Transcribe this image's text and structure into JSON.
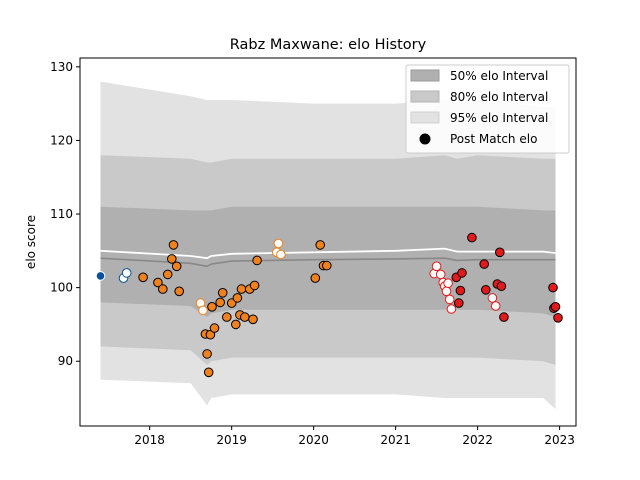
{
  "chart_data": {
    "type": "scatter",
    "title": "Rabz Maxwane: elo History",
    "xlabel": "",
    "ylabel": "elo score",
    "xlim": [
      2017.15,
      2023.2
    ],
    "ylim": [
      81.2,
      131.2
    ],
    "x_ticks": [
      2018,
      2019,
      2020,
      2021,
      2022,
      2023
    ],
    "y_ticks": [
      90,
      100,
      110,
      120,
      130
    ],
    "grid": false,
    "legend": {
      "placement": "top-right",
      "entries": [
        "50% elo Interval",
        "80% elo Interval",
        "95% elo Interval",
        "Post Match elo"
      ]
    },
    "bands": {
      "x": [
        2017.4,
        2018.5,
        2018.7,
        2018.75,
        2019.0,
        2020.0,
        2021.0,
        2021.6,
        2021.75,
        2022.0,
        2022.8,
        2022.95
      ],
      "band95": [
        [
          87.5,
          128.0
        ],
        [
          87.0,
          126.0
        ],
        [
          84.0,
          125.5
        ],
        [
          85.0,
          125.5
        ],
        [
          85.5,
          125.5
        ],
        [
          85.5,
          125.0
        ],
        [
          85.5,
          125.0
        ],
        [
          85.0,
          125.5
        ],
        [
          85.0,
          125.0
        ],
        [
          85.0,
          125.5
        ],
        [
          85.0,
          124.5
        ],
        [
          83.5,
          124.5
        ]
      ],
      "band80": [
        [
          92.0,
          118.0
        ],
        [
          91.5,
          117.5
        ],
        [
          89.5,
          117.0
        ],
        [
          90.0,
          117.0
        ],
        [
          90.5,
          117.5
        ],
        [
          90.5,
          117.5
        ],
        [
          90.5,
          117.5
        ],
        [
          90.5,
          118.0
        ],
        [
          90.5,
          117.5
        ],
        [
          90.5,
          118.0
        ],
        [
          90.0,
          117.5
        ],
        [
          89.5,
          117.5
        ]
      ],
      "band50": [
        [
          98.0,
          111.0
        ],
        [
          97.5,
          110.5
        ],
        [
          96.0,
          110.5
        ],
        [
          96.5,
          110.5
        ],
        [
          97.0,
          111.0
        ],
        [
          97.0,
          111.0
        ],
        [
          97.0,
          111.0
        ],
        [
          97.0,
          111.0
        ],
        [
          97.0,
          111.0
        ],
        [
          97.0,
          111.0
        ],
        [
          96.5,
          110.5
        ],
        [
          96.0,
          110.5
        ]
      ],
      "median": [
        104.0,
        103.3,
        102.9,
        103.2,
        103.6,
        103.8,
        103.9,
        104.0,
        103.7,
        103.8,
        103.8,
        103.8
      ],
      "mean": [
        105.0,
        104.3,
        104.0,
        104.3,
        104.6,
        104.8,
        105.0,
        105.3,
        104.9,
        104.9,
        104.9,
        104.7
      ]
    },
    "series": [
      {
        "face": "#08519c",
        "edge": "#ffffff",
        "points": [
          [
            2017.4,
            101.6
          ]
        ]
      },
      {
        "face": "#ffffff",
        "edge": "#08519c",
        "points": [
          [
            2017.68,
            101.3
          ],
          [
            2017.72,
            102.0
          ]
        ]
      },
      {
        "face": "#f0821e",
        "edge": "#000000",
        "points": [
          [
            2017.92,
            101.4
          ],
          [
            2018.1,
            100.7
          ],
          [
            2018.16,
            99.8
          ],
          [
            2018.22,
            101.8
          ],
          [
            2018.27,
            103.9
          ],
          [
            2018.29,
            105.8
          ],
          [
            2018.33,
            102.9
          ],
          [
            2018.36,
            99.5
          ],
          [
            2018.68,
            93.7
          ],
          [
            2018.7,
            91.0
          ],
          [
            2018.72,
            88.5
          ],
          [
            2018.74,
            93.6
          ],
          [
            2018.76,
            97.4
          ],
          [
            2018.79,
            94.5
          ],
          [
            2018.86,
            98.0
          ],
          [
            2018.89,
            99.3
          ],
          [
            2018.94,
            96.0
          ],
          [
            2019.0,
            97.9
          ],
          [
            2019.05,
            95.0
          ],
          [
            2019.07,
            98.6
          ],
          [
            2019.1,
            96.3
          ],
          [
            2019.12,
            99.8
          ],
          [
            2019.16,
            96.0
          ],
          [
            2019.22,
            99.8
          ],
          [
            2019.26,
            95.7
          ],
          [
            2019.28,
            100.3
          ],
          [
            2019.31,
            103.7
          ],
          [
            2020.02,
            101.3
          ],
          [
            2020.08,
            105.8
          ],
          [
            2020.12,
            103.0
          ],
          [
            2020.16,
            103.0
          ]
        ]
      },
      {
        "face": "#ffffff",
        "edge": "#f0821e",
        "points": [
          [
            2018.62,
            97.9
          ],
          [
            2018.65,
            96.9
          ],
          [
            2019.55,
            104.8
          ],
          [
            2019.57,
            106.0
          ],
          [
            2019.6,
            104.5
          ]
        ]
      },
      {
        "face": "#ffffff",
        "edge": "#e31a1c",
        "points": [
          [
            2021.47,
            101.9
          ],
          [
            2021.5,
            102.9
          ],
          [
            2021.55,
            101.8
          ],
          [
            2021.58,
            100.7
          ],
          [
            2021.6,
            100.2
          ],
          [
            2021.62,
            99.5
          ],
          [
            2021.64,
            100.6
          ],
          [
            2021.66,
            98.4
          ],
          [
            2021.68,
            97.1
          ],
          [
            2022.18,
            98.6
          ],
          [
            2022.22,
            97.5
          ]
        ]
      },
      {
        "face": "#e31a1c",
        "edge": "#000000",
        "points": [
          [
            2021.74,
            101.4
          ],
          [
            2021.77,
            97.9
          ],
          [
            2021.79,
            99.6
          ],
          [
            2021.81,
            102.0
          ],
          [
            2021.93,
            106.8
          ],
          [
            2022.08,
            103.2
          ],
          [
            2022.1,
            99.7
          ],
          [
            2022.24,
            100.5
          ],
          [
            2022.27,
            104.8
          ],
          [
            2022.29,
            100.2
          ],
          [
            2022.32,
            96.0
          ],
          [
            2022.92,
            100.0
          ],
          [
            2022.93,
            97.2
          ],
          [
            2022.95,
            97.4
          ],
          [
            2022.98,
            95.9
          ]
        ]
      }
    ]
  }
}
